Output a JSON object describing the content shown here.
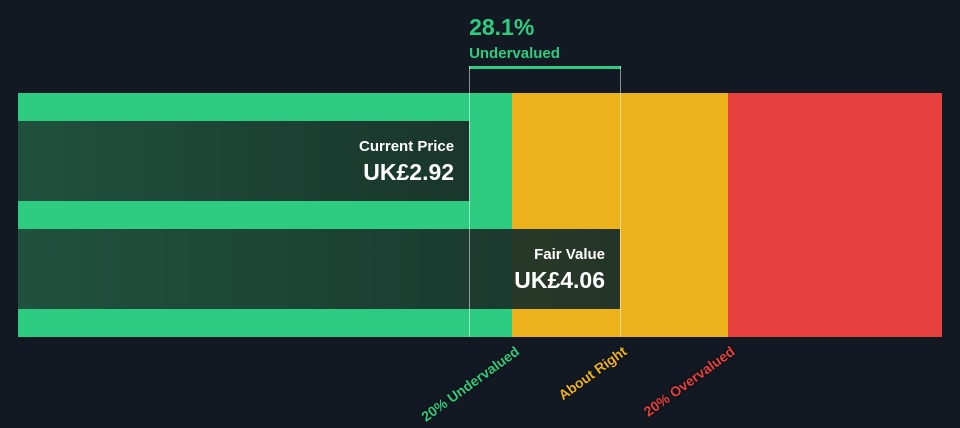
{
  "chart_data": {
    "type": "bar",
    "current_price": {
      "label": "Current Price",
      "value": 2.92,
      "display": "UK£2.92"
    },
    "fair_value": {
      "label": "Fair Value",
      "value": 4.06,
      "display": "UK£4.06"
    },
    "difference": {
      "percent": "28.1%",
      "label": "Undervalued",
      "color": "#2ecc80"
    },
    "zones": [
      {
        "label": "20% Undervalued",
        "color": "#2ecc80",
        "upper_ratio": 0.8
      },
      {
        "label": "About Right",
        "color": "#edb21b",
        "upper_ratio": 1.2
      },
      {
        "label": "20% Overvalued",
        "color": "#e6403f",
        "upper_ratio": null
      }
    ]
  }
}
